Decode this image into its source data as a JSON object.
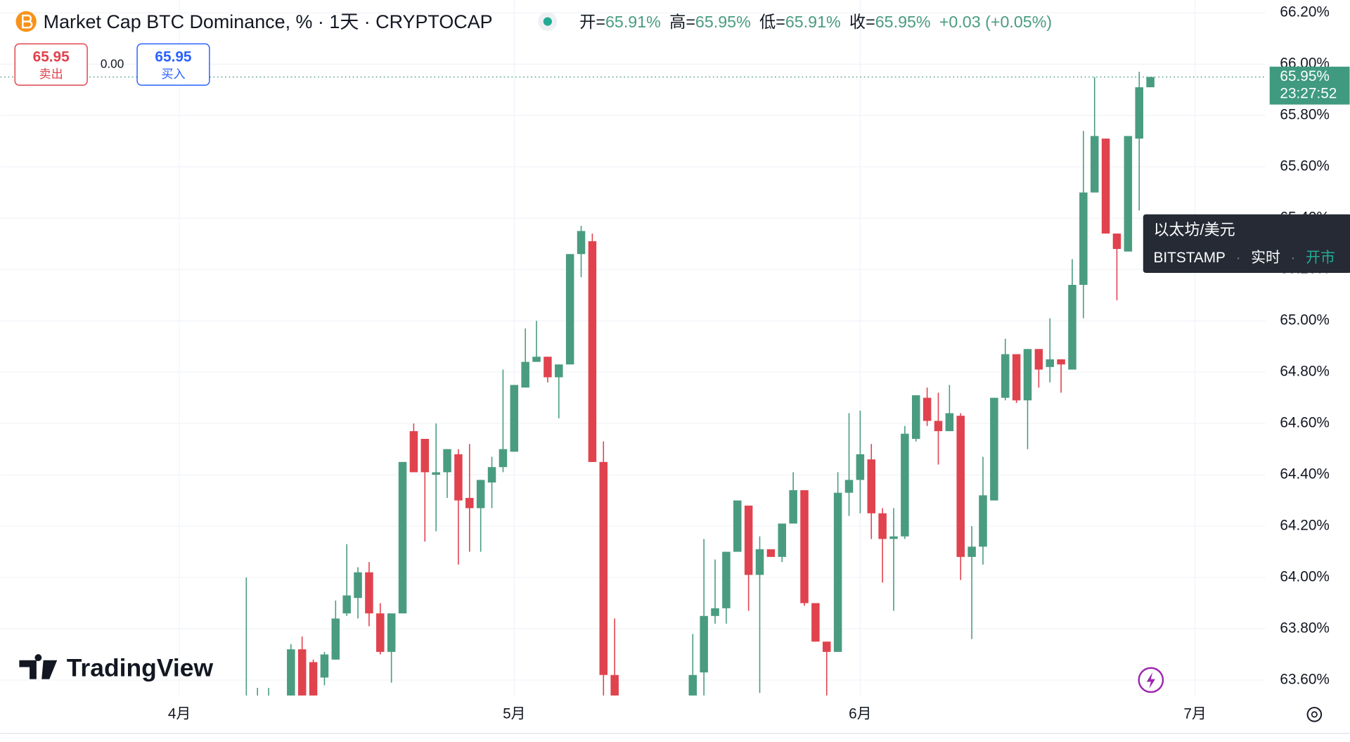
{
  "chart_data": {
    "type": "candlestick",
    "title": "Market Cap BTC Dominance, % · 1天 · CRYPTOCAP",
    "ohlc_legend": [
      {
        "label": "开=",
        "value": "65.91%"
      },
      {
        "label": "高=",
        "value": "65.95%"
      },
      {
        "label": "低=",
        "value": "65.91%"
      },
      {
        "label": "收=",
        "value": "65.95%"
      }
    ],
    "change": "+0.03 (+0.05%)",
    "trade": {
      "sell_price": "65.95",
      "sell_label": "卖出",
      "spread": "0.00",
      "buy_price": "65.95",
      "buy_label": "买入"
    },
    "last_price_label": "65.95%",
    "countdown": "23:27:52",
    "tooltip": {
      "title": "以太坊/美元",
      "exchange": "BITSTAMP",
      "mode": "实时",
      "status": "开市"
    },
    "brand": "TradingView",
    "up_color": "#4a9c80",
    "down_color": "#e0434e",
    "grid": true,
    "xlim": [
      -16.04,
      97.3
    ],
    "xticks": [
      {
        "value": 0,
        "label": "4月"
      },
      {
        "value": 30,
        "label": "5月"
      },
      {
        "value": 61,
        "label": "6月"
      },
      {
        "value": 91,
        "label": "7月"
      }
    ],
    "ylim": [
      63.54,
      66.25
    ],
    "yticks": [
      {
        "value": 63.6,
        "label": "63.60%"
      },
      {
        "value": 63.8,
        "label": "63.80%"
      },
      {
        "value": 64.0,
        "label": "64.00%"
      },
      {
        "value": 64.2,
        "label": "64.20%"
      },
      {
        "value": 64.4,
        "label": "64.40%"
      },
      {
        "value": 64.6,
        "label": "64.60%"
      },
      {
        "value": 64.8,
        "label": "64.80%"
      },
      {
        "value": 65.0,
        "label": "65.00%"
      },
      {
        "value": 65.2,
        "label": "65.20%"
      },
      {
        "value": 65.4,
        "label": "65.40%"
      },
      {
        "value": 65.6,
        "label": "65.60%"
      },
      {
        "value": 65.8,
        "label": "65.80%"
      },
      {
        "value": 66.0,
        "label": "66.00%"
      },
      {
        "value": 66.2,
        "label": "66.20%"
      }
    ],
    "series": [
      {
        "x": [
          6,
          7,
          8,
          10,
          11,
          12,
          13,
          14,
          15,
          16,
          17,
          18,
          19,
          20,
          21,
          22,
          23,
          24,
          25,
          26,
          27,
          28,
          29,
          30,
          31,
          32,
          33,
          34,
          35,
          36,
          37,
          38,
          39,
          46,
          47,
          48,
          49,
          50,
          51,
          52,
          53,
          54,
          55,
          56,
          57,
          58,
          59,
          60,
          61,
          62,
          63,
          64,
          65,
          66,
          67,
          68,
          69,
          70,
          71,
          72,
          73,
          74,
          75,
          76,
          77,
          78,
          79,
          80,
          81,
          82,
          83,
          84,
          85,
          86,
          87
        ],
        "open": [
          63.4,
          63.4,
          63.4,
          63.4,
          63.72,
          63.67,
          63.61,
          63.68,
          63.86,
          63.92,
          64.02,
          63.86,
          63.71,
          63.86,
          64.57,
          64.54,
          64.4,
          64.41,
          64.48,
          64.31,
          64.27,
          64.37,
          64.43,
          64.49,
          64.74,
          64.84,
          64.86,
          64.78,
          64.83,
          65.26,
          65.31,
          64.45,
          63.62,
          63.45,
          63.63,
          63.85,
          63.88,
          64.1,
          64.28,
          64.01,
          64.11,
          64.08,
          64.21,
          64.34,
          63.9,
          63.75,
          63.71,
          64.33,
          64.38,
          64.46,
          64.25,
          64.15,
          64.16,
          64.54,
          64.7,
          64.61,
          64.57,
          64.63,
          64.08,
          64.12,
          64.3,
          64.7,
          64.87,
          64.69,
          64.89,
          64.82,
          64.85,
          64.81,
          65.14,
          65.5,
          65.71,
          65.34,
          65.27,
          65.71,
          65.91
        ],
        "high": [
          64.0,
          63.57,
          63.57,
          63.74,
          63.77,
          63.68,
          63.71,
          63.91,
          64.13,
          64.04,
          64.06,
          63.9,
          63.86,
          64.45,
          64.6,
          64.54,
          64.6,
          64.5,
          64.5,
          64.52,
          64.38,
          64.47,
          64.81,
          64.75,
          64.97,
          65.0,
          64.86,
          64.83,
          65.26,
          65.37,
          65.34,
          64.53,
          63.84,
          63.78,
          64.15,
          64.07,
          64.1,
          64.3,
          64.28,
          64.16,
          64.11,
          64.21,
          64.41,
          64.34,
          63.9,
          63.75,
          64.41,
          64.64,
          64.65,
          64.52,
          64.27,
          64.27,
          64.59,
          64.71,
          64.74,
          64.72,
          64.75,
          64.64,
          64.2,
          64.47,
          64.7,
          64.93,
          64.87,
          64.89,
          64.89,
          65.01,
          64.85,
          65.24,
          65.74,
          65.95,
          65.71,
          65.34,
          65.72,
          65.97,
          65.95
        ],
        "low": [
          63.3,
          63.3,
          63.3,
          63.35,
          63.35,
          63.4,
          63.58,
          63.68,
          63.85,
          63.84,
          63.81,
          63.7,
          63.59,
          63.86,
          64.41,
          64.14,
          64.18,
          64.31,
          64.05,
          64.1,
          64.1,
          64.27,
          64.41,
          64.49,
          64.74,
          64.84,
          64.76,
          64.62,
          64.83,
          65.17,
          64.45,
          63.45,
          63.3,
          63.4,
          63.5,
          63.82,
          63.82,
          64.1,
          63.87,
          63.55,
          64.08,
          64.06,
          64.21,
          63.89,
          63.75,
          63.54,
          63.71,
          64.24,
          64.25,
          64.15,
          63.98,
          63.87,
          64.15,
          64.53,
          64.59,
          64.44,
          64.57,
          63.99,
          63.76,
          64.05,
          64.3,
          64.69,
          64.68,
          64.5,
          64.74,
          64.76,
          64.72,
          64.81,
          65.01,
          65.5,
          65.34,
          65.08,
          65.27,
          65.43,
          65.91
        ],
        "close": [
          63.45,
          63.42,
          63.42,
          63.72,
          63.45,
          63.45,
          63.7,
          63.84,
          63.93,
          64.02,
          63.86,
          63.71,
          63.86,
          64.45,
          64.41,
          64.41,
          64.41,
          64.5,
          64.3,
          64.27,
          64.38,
          64.43,
          64.5,
          64.75,
          64.84,
          64.86,
          64.78,
          64.83,
          65.26,
          65.35,
          64.45,
          63.62,
          63.4,
          63.62,
          63.85,
          63.88,
          64.1,
          64.3,
          64.01,
          64.11,
          64.08,
          64.21,
          64.34,
          63.9,
          63.75,
          63.71,
          64.33,
          64.38,
          64.48,
          64.25,
          64.15,
          64.16,
          64.56,
          64.71,
          64.61,
          64.57,
          64.64,
          64.08,
          64.12,
          64.32,
          64.7,
          64.87,
          64.69,
          64.89,
          64.81,
          64.85,
          64.83,
          65.14,
          65.5,
          65.72,
          65.34,
          65.28,
          65.72,
          65.91,
          65.95
        ]
      }
    ]
  }
}
